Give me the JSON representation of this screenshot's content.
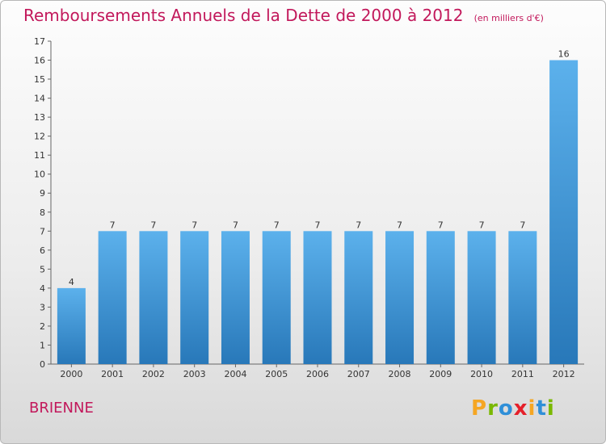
{
  "title": "Remboursements Annuels de la Dette de 2000 à 2012",
  "subtitle": "(en milliers d'€)",
  "commune": "BRIENNE",
  "logo": {
    "letters": [
      "P",
      "r",
      "o",
      "x",
      "i",
      "t",
      "i"
    ],
    "colors": [
      "#f5a623",
      "#7ab800",
      "#2f8fd8",
      "#e5202a",
      "#f5a623",
      "#2f8fd8",
      "#7ab800"
    ]
  },
  "chart_data": {
    "type": "bar",
    "categories": [
      "2000",
      "2001",
      "2002",
      "2003",
      "2004",
      "2005",
      "2006",
      "2007",
      "2008",
      "2009",
      "2010",
      "2011",
      "2012"
    ],
    "values": [
      4,
      7,
      7,
      7,
      7,
      7,
      7,
      7,
      7,
      7,
      7,
      7,
      16
    ],
    "data_labels": [
      "4",
      "7",
      "7",
      "7",
      "7",
      "7",
      "7",
      "7",
      "7",
      "7",
      "7",
      "7",
      "16"
    ],
    "ylim": [
      0,
      17
    ],
    "yticks": [
      "0",
      "1",
      "2",
      "3",
      "4",
      "5",
      "6",
      "7",
      "8",
      "9",
      "10",
      "11",
      "12",
      "13",
      "14",
      "15",
      "16",
      "17"
    ],
    "grid": false,
    "bar_color": "#4aa3e3",
    "bar_color_dark": "#2a7dbf"
  }
}
